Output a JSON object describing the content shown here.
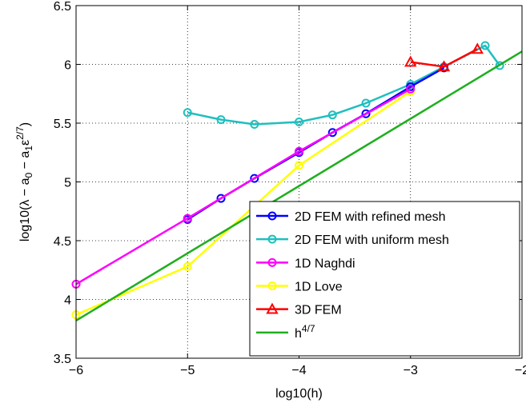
{
  "chart_data": {
    "type": "line",
    "xlabel": "log10(h)",
    "ylabel": {
      "parts": [
        {
          "text": "log10(λ − a",
          "shift": "base"
        },
        {
          "text": "0",
          "shift": "sub"
        },
        {
          "text": " − a",
          "shift": "base"
        },
        {
          "text": "1",
          "shift": "sub"
        },
        {
          "text": "ε",
          "shift": "base"
        },
        {
          "text": "2/7",
          "shift": "super"
        },
        {
          "text": ")",
          "shift": "base"
        }
      ]
    },
    "xlim": [
      -6,
      -2
    ],
    "ylim": [
      3.5,
      6.5
    ],
    "xticks": [
      -6,
      -5,
      -4,
      -3,
      -2
    ],
    "xtick_labels": [
      "−6",
      "−5",
      "−4",
      "−3",
      "−2"
    ],
    "yticks": [
      3.5,
      4,
      4.5,
      5,
      5.5,
      6,
      6.5
    ],
    "ytick_labels": [
      "3.5",
      "4",
      "4.5",
      "5",
      "5.5",
      "6",
      "6.5"
    ],
    "grid": true,
    "legend_position": "lower-right",
    "series": [
      {
        "name": "1D Love",
        "legend_parts": [
          {
            "text": "1D Love",
            "shift": "base"
          }
        ],
        "color": "#ffff00",
        "marker": "circle",
        "x": [
          -6,
          -5,
          -4,
          -3
        ],
        "y": [
          3.87,
          4.28,
          5.14,
          5.77
        ]
      },
      {
        "name": "2D FEM with uniform mesh",
        "legend_parts": [
          {
            "text": "2D FEM with uniform mesh",
            "shift": "base"
          }
        ],
        "color": "#1fbfbf",
        "marker": "circle",
        "x": [
          -5,
          -4.7,
          -4.4,
          -4.0,
          -3.7,
          -3.4,
          -3.0,
          -2.7,
          -2.33,
          -2.2
        ],
        "y": [
          5.59,
          5.53,
          5.49,
          5.51,
          5.57,
          5.67,
          5.83,
          5.98,
          6.16,
          5.99
        ]
      },
      {
        "name": "2D FEM with refined mesh",
        "legend_parts": [
          {
            "text": "2D FEM with refined mesh",
            "shift": "base"
          }
        ],
        "color": "#0000ff",
        "marker": "circle",
        "x": [
          -5,
          -4.7,
          -4.4,
          -4.0,
          -3.7,
          -3.4,
          -3.0,
          -2.7
        ],
        "y": [
          4.68,
          4.86,
          5.03,
          5.25,
          5.42,
          5.58,
          5.81,
          5.97
        ]
      },
      {
        "name": "1D Naghdi",
        "legend_parts": [
          {
            "text": "1D Naghdi",
            "shift": "base"
          }
        ],
        "color": "#ff00ff",
        "marker": "circle",
        "x": [
          -6,
          -5,
          -4,
          -3
        ],
        "y": [
          4.13,
          4.69,
          5.26,
          5.79
        ]
      },
      {
        "name": "3D FEM",
        "legend_parts": [
          {
            "text": "3D FEM",
            "shift": "base"
          }
        ],
        "color": "#ff0000",
        "marker": "triangle",
        "x": [
          -3,
          -2.7,
          -2.4
        ],
        "y": [
          6.02,
          5.98,
          6.13
        ]
      },
      {
        "name": "h^4/7",
        "legend_parts": [
          {
            "text": "h",
            "shift": "base"
          },
          {
            "text": "4/7",
            "shift": "super"
          }
        ],
        "color": "#1faf1f",
        "marker": "none",
        "x": [
          -6,
          -2
        ],
        "y": [
          3.82,
          6.11
        ]
      }
    ],
    "legend_order": [
      "2D FEM with refined mesh",
      "2D FEM with uniform mesh",
      "1D Naghdi",
      "1D Love",
      "3D FEM",
      "h^4/7"
    ]
  }
}
